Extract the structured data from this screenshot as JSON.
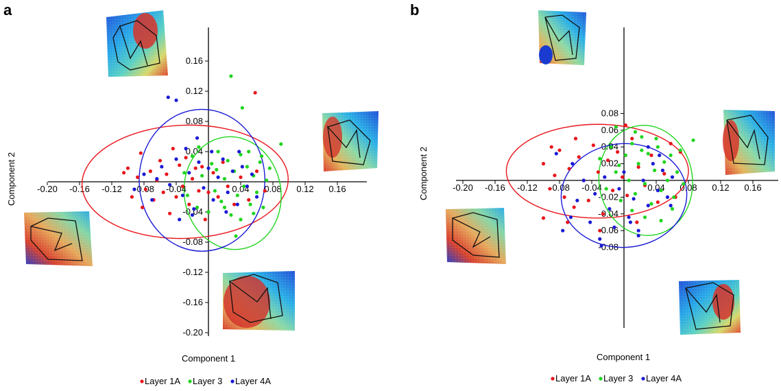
{
  "figure": {
    "panels": [
      {
        "letter": "a",
        "xlabel": "Component 1",
        "ylabel": "Component 2"
      },
      {
        "letter": "b",
        "xlabel": "Component 1",
        "ylabel": "Component 2"
      }
    ],
    "legend": [
      {
        "name": "Layer 1A",
        "color": "#e8141b"
      },
      {
        "name": "Layer 3",
        "color": "#1fd51f"
      },
      {
        "name": "Layer 4A",
        "color": "#1a1ad6"
      }
    ]
  },
  "chart_data": [
    {
      "type": "scatter",
      "panel": "a",
      "xlabel": "Component 1",
      "ylabel": "Component 2",
      "xticks": [
        "-0.20",
        "-0.16",
        "-0.12",
        "-0.08",
        "-0.04",
        "0.04",
        "0.08",
        "0.12",
        "0.16"
      ],
      "yticks": [
        "0.16",
        "0.12",
        "0.08",
        "0.04",
        "-0.04",
        "-0.08",
        "-0.12",
        "-0.16",
        "-0.20"
      ],
      "xlim": [
        -0.2,
        0.2
      ],
      "ylim": [
        -0.2,
        0.19
      ],
      "legend": "bottom",
      "series": [
        {
          "name": "Layer 1A",
          "color": "#e8141b",
          "ellipse": {
            "cx": -0.029,
            "cy": 0.0,
            "rx": 0.128,
            "ry": 0.075,
            "angle": -2
          },
          "points": [
            [
              -0.105,
              0.012
            ],
            [
              -0.095,
              -0.02
            ],
            [
              -0.088,
              0.006
            ],
            [
              -0.082,
              -0.034
            ],
            [
              -0.078,
              -0.01
            ],
            [
              -0.072,
              0.014
            ],
            [
              -0.068,
              -0.024
            ],
            [
              -0.064,
              0.002
            ],
            [
              -0.06,
              0.028
            ],
            [
              -0.056,
              -0.014
            ],
            [
              -0.052,
              0.01
            ],
            [
              -0.048,
              -0.042
            ],
            [
              -0.044,
              0.044
            ],
            [
              -0.04,
              -0.02
            ],
            [
              -0.036,
              0.022
            ],
            [
              -0.032,
              -0.006
            ],
            [
              -0.028,
              0.032
            ],
            [
              -0.024,
              -0.03
            ],
            [
              -0.02,
              0.004
            ],
            [
              -0.016,
              0.018
            ],
            [
              -0.012,
              -0.012
            ],
            [
              -0.008,
              0.02
            ],
            [
              -0.004,
              -0.05
            ],
            [
              0.0,
              -0.014
            ],
            [
              0.006,
              0.012
            ],
            [
              0.012,
              -0.02
            ],
            [
              0.018,
              0.026
            ],
            [
              0.024,
              -0.006
            ],
            [
              0.032,
              -0.03
            ],
            [
              0.04,
              0.006
            ],
            [
              0.05,
              -0.024
            ],
            [
              0.06,
              0.014
            ],
            [
              0.07,
              -0.012
            ],
            [
              0.058,
              0.118
            ],
            [
              -0.1,
              0.018
            ],
            [
              -0.084,
              0.038
            ]
          ]
        },
        {
          "name": "Layer 3",
          "color": "#1fd51f",
          "ellipse": {
            "cx": 0.03,
            "cy": -0.015,
            "rx": 0.06,
            "ry": 0.075,
            "angle": -10
          },
          "points": [
            [
              -0.03,
              0.012
            ],
            [
              -0.026,
              -0.018
            ],
            [
              -0.02,
              0.034
            ],
            [
              -0.014,
              -0.034
            ],
            [
              -0.008,
              0.008
            ],
            [
              0.0,
              -0.04
            ],
            [
              0.004,
              0.024
            ],
            [
              0.008,
              -0.012
            ],
            [
              0.012,
              0.04
            ],
            [
              0.016,
              -0.026
            ],
            [
              0.02,
              0.004
            ],
            [
              0.024,
              0.028
            ],
            [
              0.028,
              -0.044
            ],
            [
              0.032,
              0.014
            ],
            [
              0.036,
              -0.018
            ],
            [
              0.04,
              0.036
            ],
            [
              0.044,
              -0.006
            ],
            [
              0.048,
              0.02
            ],
            [
              0.052,
              -0.03
            ],
            [
              0.056,
              0.008
            ],
            [
              0.06,
              -0.014
            ],
            [
              0.064,
              0.026
            ],
            [
              0.068,
              -0.034
            ],
            [
              0.072,
              0.002
            ],
            [
              0.076,
              0.018
            ],
            [
              0.04,
              -0.05
            ],
            [
              0.02,
              -0.034
            ],
            [
              0.01,
              0.016
            ],
            [
              0.05,
              0.04
            ],
            [
              0.028,
              0.14
            ],
            [
              0.042,
              0.098
            ],
            [
              0.09,
              0.05
            ],
            [
              0.034,
              -0.072
            ],
            [
              -0.012,
              0.046
            ],
            [
              0.056,
              -0.042
            ],
            [
              0.066,
              0.034
            ]
          ]
        },
        {
          "name": "Layer 4A",
          "color": "#1a1ad6",
          "ellipse": {
            "cx": -0.008,
            "cy": 0.002,
            "rx": 0.078,
            "ry": 0.094,
            "angle": 0
          },
          "points": [
            [
              -0.092,
              -0.01
            ],
            [
              -0.08,
              0.01
            ],
            [
              -0.07,
              -0.024
            ],
            [
              -0.058,
              0.02
            ],
            [
              -0.048,
              -0.004
            ],
            [
              -0.04,
              0.03
            ],
            [
              -0.032,
              -0.018
            ],
            [
              -0.024,
              0.012
            ],
            [
              -0.018,
              -0.036
            ],
            [
              -0.012,
              0.026
            ],
            [
              -0.006,
              -0.008
            ],
            [
              0.0,
              0.018
            ],
            [
              0.006,
              -0.024
            ],
            [
              0.012,
              0.006
            ],
            [
              0.018,
              0.03
            ],
            [
              0.024,
              -0.014
            ],
            [
              0.03,
              0.014
            ],
            [
              0.036,
              -0.03
            ],
            [
              0.042,
              0.02
            ],
            [
              0.048,
              -0.006
            ],
            [
              0.054,
              0.01
            ],
            [
              0.06,
              -0.02
            ],
            [
              -0.028,
              0.044
            ],
            [
              -0.014,
              0.058
            ],
            [
              0.004,
              0.04
            ],
            [
              -0.05,
              0.112
            ],
            [
              -0.04,
              0.108
            ],
            [
              -0.02,
              -0.044
            ],
            [
              0.022,
              -0.04
            ],
            [
              0.038,
              0.04
            ],
            [
              -0.064,
              0.004
            ],
            [
              -0.036,
              -0.05
            ]
          ]
        }
      ]
    },
    {
      "type": "scatter",
      "panel": "b",
      "xlabel": "Component 1",
      "ylabel": "Component 2",
      "xticks": [
        "-0.20",
        "-0.16",
        "-0.12",
        "-0.08",
        "-0.04",
        "0.04",
        "0.08",
        "0.12",
        "0.16"
      ],
      "yticks": [
        "0.08",
        "0.06",
        "0.04",
        "0.02",
        "-0.02",
        "-0.04",
        "-0.06",
        "-0.08"
      ],
      "xlim": [
        -0.2,
        0.2
      ],
      "ylim": [
        -0.09,
        0.1
      ],
      "legend": "bottom",
      "series": [
        {
          "name": "Layer 1A",
          "color": "#e8141b",
          "ellipse": {
            "cx": -0.033,
            "cy": 0.011,
            "rx": 0.113,
            "ry": 0.056,
            "angle": 0
          },
          "points": [
            [
              -0.1,
              0.02
            ],
            [
              -0.092,
              -0.01
            ],
            [
              -0.086,
              0.006
            ],
            [
              -0.08,
              0.036
            ],
            [
              -0.074,
              -0.02
            ],
            [
              -0.068,
              0.014
            ],
            [
              -0.062,
              -0.032
            ],
            [
              -0.056,
              0.028
            ],
            [
              -0.05,
              0.0
            ],
            [
              -0.044,
              -0.024
            ],
            [
              -0.038,
              0.042
            ],
            [
              -0.032,
              0.01
            ],
            [
              -0.026,
              -0.04
            ],
            [
              -0.02,
              0.024
            ],
            [
              -0.014,
              -0.012
            ],
            [
              -0.008,
              0.034
            ],
            [
              -0.002,
              0.004
            ],
            [
              0.004,
              -0.018
            ],
            [
              0.01,
              0.05
            ],
            [
              0.018,
              0.016
            ],
            [
              0.026,
              -0.006
            ],
            [
              0.034,
              0.03
            ],
            [
              0.042,
              -0.026
            ],
            [
              0.05,
              0.008
            ],
            [
              0.058,
              0.044
            ],
            [
              0.064,
              -0.02
            ],
            [
              0.002,
              0.066
            ],
            [
              -0.06,
              0.05
            ],
            [
              -0.09,
              0.04
            ],
            [
              -0.1,
              -0.045
            ],
            [
              -0.07,
              -0.05
            ],
            [
              -0.03,
              -0.06
            ],
            [
              0.016,
              -0.05
            ],
            [
              0.07,
              0.034
            ]
          ]
        },
        {
          "name": "Layer 3",
          "color": "#1fd51f",
          "ellipse": {
            "cx": 0.027,
            "cy": 0.0,
            "rx": 0.058,
            "ry": 0.066,
            "angle": -8
          },
          "points": [
            [
              -0.03,
              0.026
            ],
            [
              -0.022,
              -0.01
            ],
            [
              -0.016,
              0.04
            ],
            [
              -0.01,
              0.01
            ],
            [
              -0.004,
              -0.024
            ],
            [
              0.002,
              0.03
            ],
            [
              0.006,
              0.0
            ],
            [
              0.01,
              0.044
            ],
            [
              0.014,
              -0.016
            ],
            [
              0.018,
              0.02
            ],
            [
              0.022,
              0.052
            ],
            [
              0.026,
              -0.004
            ],
            [
              0.03,
              0.032
            ],
            [
              0.034,
              -0.028
            ],
            [
              0.038,
              0.012
            ],
            [
              0.042,
              0.04
            ],
            [
              0.046,
              -0.012
            ],
            [
              0.05,
              0.022
            ],
            [
              0.054,
              0.0
            ],
            [
              0.058,
              0.03
            ],
            [
              0.062,
              -0.02
            ],
            [
              0.066,
              0.01
            ],
            [
              0.07,
              0.036
            ],
            [
              0.074,
              -0.004
            ],
            [
              0.01,
              -0.036
            ],
            [
              0.026,
              -0.044
            ],
            [
              0.046,
              -0.048
            ],
            [
              0.06,
              -0.034
            ],
            [
              0.086,
              0.048
            ],
            [
              -0.01,
              0.064
            ],
            [
              0.014,
              0.058
            ],
            [
              0.04,
              0.05
            ],
            [
              0.022,
              0.036
            ],
            [
              -0.006,
              0.018
            ]
          ]
        },
        {
          "name": "Layer 4A",
          "color": "#1a1ad6",
          "ellipse": {
            "cx": 0.0,
            "cy": -0.018,
            "rx": 0.078,
            "ry": 0.062,
            "angle": -3
          },
          "points": [
            [
              -0.076,
              -0.06
            ],
            [
              -0.066,
              -0.044
            ],
            [
              -0.058,
              -0.024
            ],
            [
              -0.05,
              0.0
            ],
            [
              -0.042,
              -0.05
            ],
            [
              -0.036,
              -0.016
            ],
            [
              -0.03,
              -0.07
            ],
            [
              -0.024,
              0.004
            ],
            [
              -0.018,
              -0.034
            ],
            [
              -0.012,
              -0.056
            ],
            [
              -0.006,
              -0.01
            ],
            [
              0.0,
              0.01
            ],
            [
              0.006,
              -0.044
            ],
            [
              0.012,
              -0.022
            ],
            [
              0.018,
              -0.06
            ],
            [
              0.024,
              0.0
            ],
            [
              0.03,
              -0.03
            ],
            [
              0.036,
              0.02
            ],
            [
              0.042,
              -0.012
            ],
            [
              0.048,
              0.012
            ],
            [
              0.054,
              -0.02
            ],
            [
              0.06,
              0.004
            ],
            [
              -0.028,
              -0.078
            ],
            [
              0.008,
              -0.05
            ],
            [
              0.044,
              0.03
            ],
            [
              0.03,
              0.04
            ],
            [
              -0.084,
              0.032
            ],
            [
              -0.064,
              0.02
            ],
            [
              0.058,
              -0.03
            ],
            [
              0.018,
              -0.066
            ]
          ]
        }
      ]
    }
  ]
}
